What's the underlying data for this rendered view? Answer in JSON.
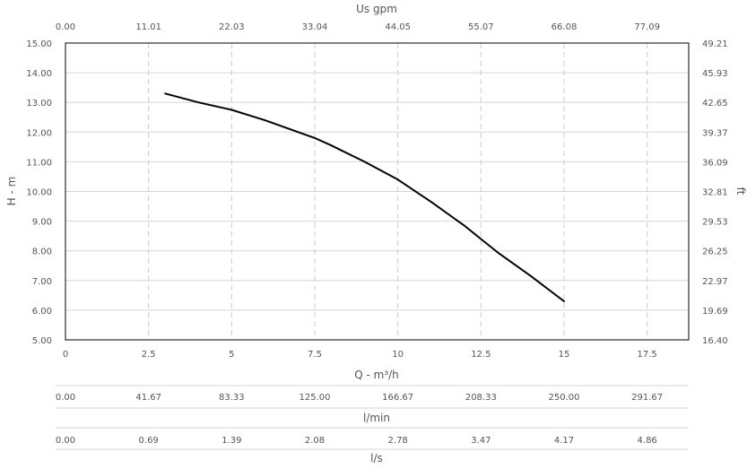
{
  "chart_data": {
    "type": "line",
    "title": "",
    "top_axis": {
      "label": "Us gpm",
      "ticks": [
        "0.00",
        "11.01",
        "22.03",
        "33.04",
        "44.05",
        "55.07",
        "66.08",
        "77.09"
      ]
    },
    "left_axis": {
      "label": "H - m",
      "ylim": [
        5,
        15
      ],
      "ticks": [
        "5.00",
        "6.00",
        "7.00",
        "8.00",
        "9.00",
        "10.00",
        "11.00",
        "12.00",
        "13.00",
        "14.00",
        "15.00"
      ]
    },
    "right_axis": {
      "label": "ft",
      "ticks": [
        "16.40",
        "19.69",
        "22.97",
        "26.25",
        "29.53",
        "32.81",
        "36.09",
        "39.37",
        "42.65",
        "45.93",
        "49.21"
      ]
    },
    "x_axis": {
      "label": "Q - m³/h",
      "xlim": [
        0,
        18.75
      ],
      "ticks": [
        "0",
        "2.5",
        "5",
        "7.5",
        "10",
        "12.5",
        "15",
        "17.5"
      ]
    },
    "lmin_axis": {
      "label": "l/min",
      "ticks": [
        "0.00",
        "41.67",
        "83.33",
        "125.00",
        "166.67",
        "208.33",
        "250.00",
        "291.67"
      ]
    },
    "ls_axis": {
      "label": "l/s",
      "ticks": [
        "0.00",
        "0.69",
        "1.39",
        "2.08",
        "2.78",
        "3.47",
        "4.17",
        "4.86"
      ]
    },
    "grid": true,
    "series": [
      {
        "color": "#000000",
        "x": [
          3.0,
          4.0,
          5.0,
          6.0,
          7.0,
          7.5,
          8.0,
          9.0,
          10.0,
          11.0,
          12.0,
          12.5,
          13.0,
          14.0,
          15.0
        ],
        "y": [
          13.3,
          13.0,
          12.75,
          12.4,
          12.0,
          11.8,
          11.55,
          11.0,
          10.4,
          9.65,
          8.85,
          8.4,
          7.95,
          7.15,
          6.3
        ]
      }
    ]
  }
}
